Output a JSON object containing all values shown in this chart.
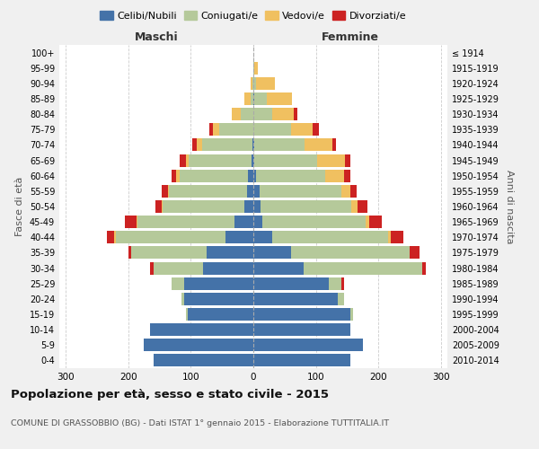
{
  "age_groups": [
    "0-4",
    "5-9",
    "10-14",
    "15-19",
    "20-24",
    "25-29",
    "30-34",
    "35-39",
    "40-44",
    "45-49",
    "50-54",
    "55-59",
    "60-64",
    "65-69",
    "70-74",
    "75-79",
    "80-84",
    "85-89",
    "90-94",
    "95-99",
    "100+"
  ],
  "birth_years": [
    "2010-2014",
    "2005-2009",
    "2000-2004",
    "1995-1999",
    "1990-1994",
    "1985-1989",
    "1980-1984",
    "1975-1979",
    "1970-1974",
    "1965-1969",
    "1960-1964",
    "1955-1959",
    "1950-1954",
    "1945-1949",
    "1940-1944",
    "1935-1939",
    "1930-1934",
    "1925-1929",
    "1920-1924",
    "1915-1919",
    "≤ 1914"
  ],
  "males": {
    "celibe": [
      160,
      175,
      165,
      105,
      110,
      110,
      80,
      75,
      45,
      30,
      15,
      10,
      8,
      3,
      2,
      0,
      0,
      0,
      0,
      0,
      0
    ],
    "coniugato": [
      0,
      0,
      0,
      2,
      5,
      20,
      80,
      120,
      175,
      155,
      130,
      125,
      110,
      100,
      80,
      55,
      20,
      5,
      2,
      0,
      0
    ],
    "vedovo": [
      0,
      0,
      0,
      0,
      0,
      0,
      0,
      0,
      2,
      2,
      2,
      2,
      5,
      5,
      8,
      10,
      15,
      10,
      2,
      0,
      0
    ],
    "divorziato": [
      0,
      0,
      0,
      0,
      0,
      0,
      5,
      5,
      12,
      18,
      10,
      10,
      8,
      10,
      8,
      5,
      0,
      0,
      0,
      0,
      0
    ]
  },
  "females": {
    "nubile": [
      155,
      175,
      155,
      155,
      135,
      120,
      80,
      60,
      30,
      15,
      12,
      10,
      5,
      2,
      2,
      0,
      0,
      2,
      0,
      0,
      0
    ],
    "coniugata": [
      0,
      0,
      0,
      5,
      10,
      20,
      190,
      190,
      185,
      165,
      145,
      130,
      110,
      100,
      80,
      60,
      30,
      20,
      5,
      2,
      0
    ],
    "vedova": [
      0,
      0,
      0,
      0,
      0,
      0,
      0,
      0,
      5,
      5,
      10,
      15,
      30,
      45,
      45,
      35,
      35,
      40,
      30,
      5,
      0
    ],
    "divorziata": [
      0,
      0,
      0,
      0,
      0,
      5,
      5,
      15,
      20,
      20,
      15,
      10,
      10,
      8,
      5,
      10,
      5,
      0,
      0,
      0,
      0
    ]
  },
  "colors": {
    "celibe": "#4472a8",
    "coniugato": "#b5c99a",
    "vedovo": "#f0c060",
    "divorziato": "#cc2222"
  },
  "xlim": 310,
  "title": "Popolazione per età, sesso e stato civile - 2015",
  "subtitle": "COMUNE DI GRASSOBBIO (BG) - Dati ISTAT 1° gennaio 2015 - Elaborazione TUTTITALIA.IT",
  "ylabel_left": "Fasce di età",
  "ylabel_right": "Anni di nascita",
  "xlabel_left": "Maschi",
  "xlabel_right": "Femmine",
  "bg_color": "#f0f0f0",
  "plot_bg_color": "#ffffff"
}
